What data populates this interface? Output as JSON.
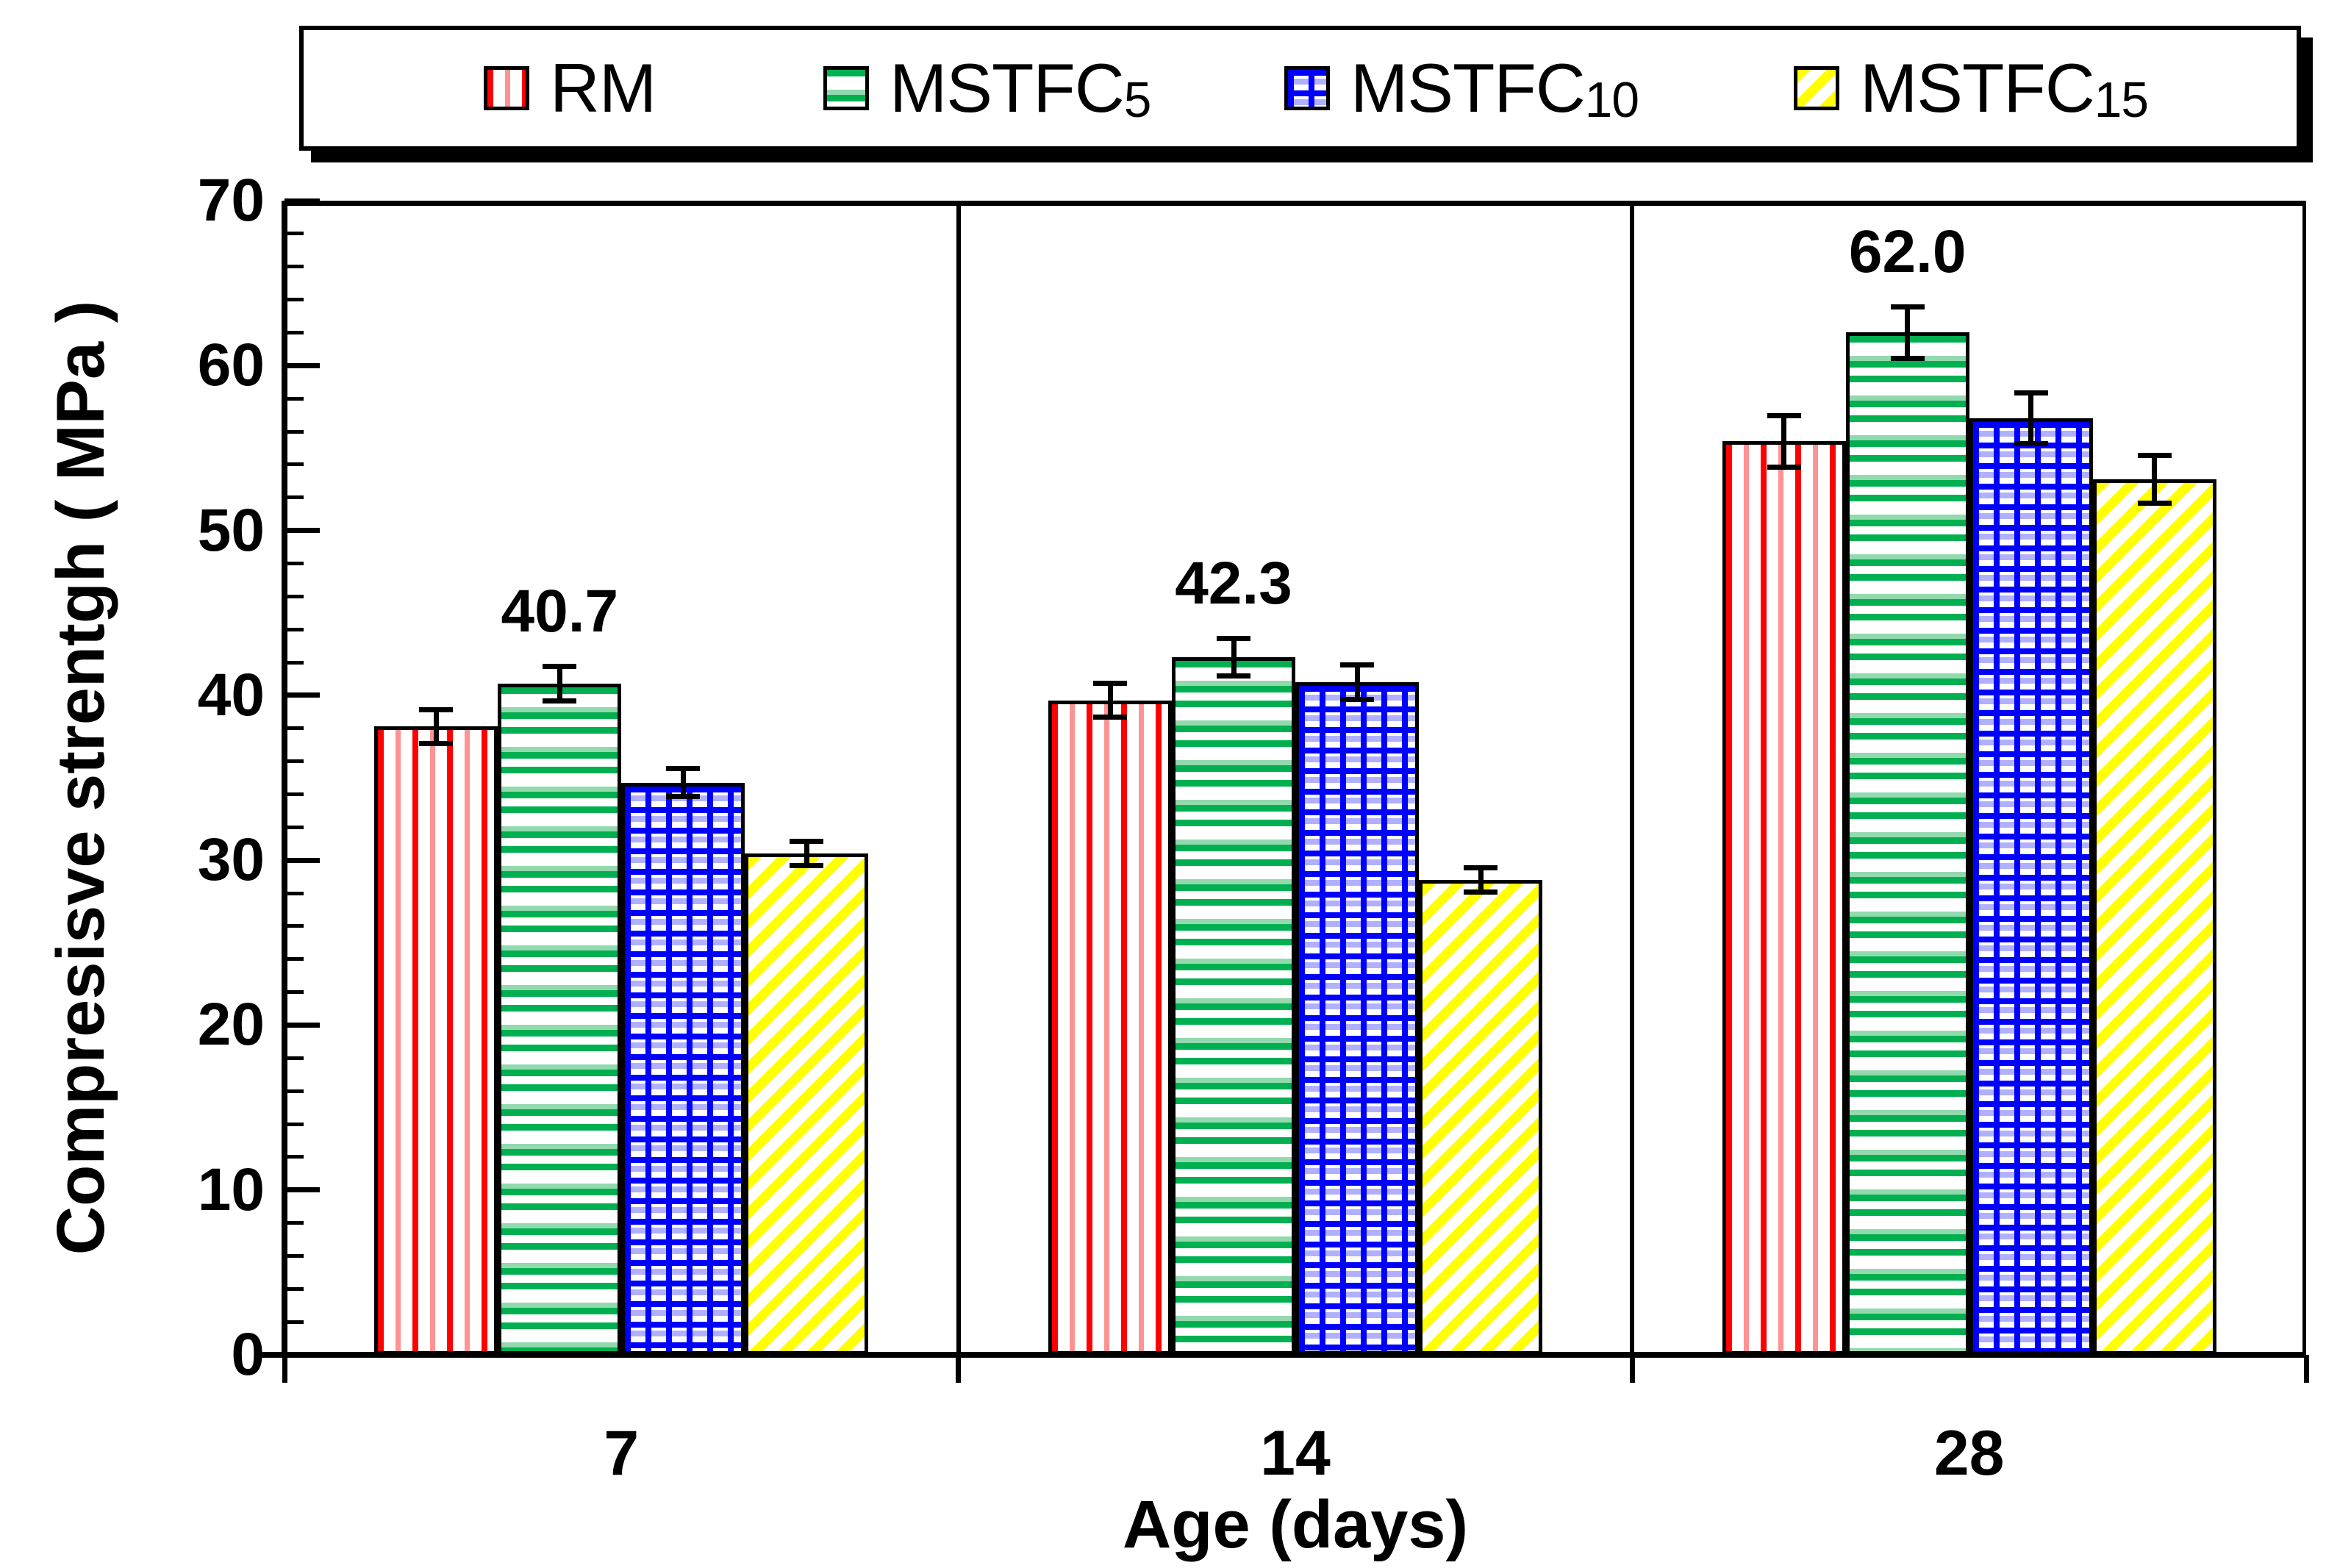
{
  "chart_data": {
    "type": "bar",
    "title": "",
    "xlabel": "Age (days)",
    "ylabel": "Compresisve strentgh ( MPa )",
    "categories": [
      "7",
      "14",
      "28"
    ],
    "series": [
      {
        "name": "RM",
        "pattern": "vertical-stripes",
        "color": "#FF0000",
        "values": [
          38.1,
          39.7,
          55.4
        ],
        "errors": [
          1.2,
          1.2,
          1.7
        ]
      },
      {
        "name": "MSTFC5",
        "pattern": "horizontal-stripes",
        "color": "#00B050",
        "values": [
          40.7,
          42.3,
          62.0
        ],
        "errors": [
          1.2,
          1.3,
          1.7
        ]
      },
      {
        "name": "MSTFC10",
        "pattern": "grid",
        "color": "#0000FF",
        "values": [
          34.7,
          40.8,
          56.8
        ],
        "errors": [
          1.0,
          1.2,
          1.7
        ]
      },
      {
        "name": "MSTFC15",
        "pattern": "diagonal-stripes",
        "color": "#FFFF00",
        "values": [
          30.4,
          28.8,
          53.1
        ],
        "errors": [
          0.9,
          0.9,
          1.6
        ]
      }
    ],
    "annotations": [
      {
        "series_index": 1,
        "category_index": 0,
        "text": "40.7"
      },
      {
        "series_index": 1,
        "category_index": 1,
        "text": "42.3"
      },
      {
        "series_index": 1,
        "category_index": 2,
        "text": "62.0"
      }
    ],
    "ylim": [
      0,
      70
    ],
    "ytick_step": 10,
    "yminor_step": 2,
    "ytick_labels": [
      "0",
      "10",
      "20",
      "30",
      "40",
      "50",
      "60",
      "70"
    ],
    "grid": false,
    "error_bars": true,
    "legend_position": "top"
  },
  "legend": {
    "items": [
      {
        "label": "RM",
        "prefix": "RM",
        "digits": "",
        "swatch": "vertical-stripes"
      },
      {
        "label": "MSTFC5",
        "prefix": "MSTFC",
        "digits": "5",
        "swatch": "horizontal-stripes"
      },
      {
        "label": "MSTFC10",
        "prefix": "MSTFC",
        "digits": "10",
        "swatch": "grid"
      },
      {
        "label": "MSTFC15",
        "prefix": "MSTFC",
        "digits": "15",
        "swatch": "diagonal-stripes"
      }
    ]
  }
}
